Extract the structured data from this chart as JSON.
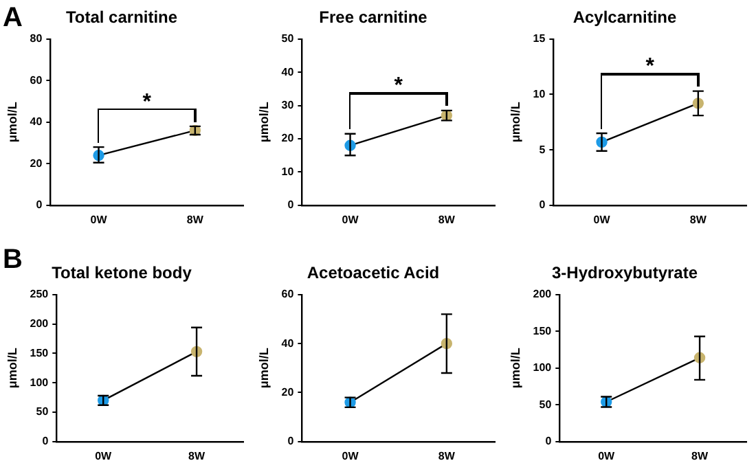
{
  "chart_data": [
    {
      "type": "line",
      "title": "Total carnitine",
      "ylabel": "μmol/L",
      "categories": [
        "0W",
        "8W"
      ],
      "series": [
        {
          "color": "#000000",
          "colors": [
            "#1e9be6",
            "#c8b46e"
          ],
          "values": [
            24,
            36
          ],
          "errors": [
            [
              20.5,
              28
            ],
            [
              34,
              38
            ]
          ]
        }
      ],
      "ylim": [
        0,
        80
      ],
      "yticks": [
        0,
        20,
        40,
        60,
        80
      ],
      "grid": false,
      "legend": false,
      "marker": "circle",
      "annotations": [
        "A",
        "*"
      ]
    },
    {
      "type": "line",
      "title": "Free carnitine",
      "ylabel": "μmol/L",
      "categories": [
        "0W",
        "8W"
      ],
      "series": [
        {
          "color": "#000000",
          "colors": [
            "#1e9be6",
            "#c8b46e"
          ],
          "values": [
            18,
            27
          ],
          "errors": [
            [
              15,
              21.5
            ],
            [
              25.5,
              28.5
            ]
          ]
        }
      ],
      "ylim": [
        0,
        50
      ],
      "yticks": [
        0,
        10,
        20,
        30,
        40,
        50
      ],
      "grid": false,
      "legend": false,
      "marker": "circle",
      "annotations": [
        "*"
      ]
    },
    {
      "type": "line",
      "title": "Acylcarnitine",
      "ylabel": "μmol/L",
      "categories": [
        "0W",
        "8W"
      ],
      "series": [
        {
          "color": "#000000",
          "colors": [
            "#1e9be6",
            "#c8b46e"
          ],
          "values": [
            5.7,
            9.2
          ],
          "errors": [
            [
              4.9,
              6.5
            ],
            [
              8.1,
              10.3
            ]
          ]
        }
      ],
      "ylim": [
        0,
        15
      ],
      "yticks": [
        0,
        5,
        10,
        15
      ],
      "grid": false,
      "legend": false,
      "marker": "circle",
      "annotations": [
        "*"
      ]
    },
    {
      "type": "line",
      "title": "Total ketone body",
      "ylabel": "μmol/L",
      "categories": [
        "0W",
        "8W"
      ],
      "series": [
        {
          "color": "#000000",
          "colors": [
            "#1e9be6",
            "#c8b46e"
          ],
          "values": [
            70,
            153
          ],
          "errors": [
            [
              62,
              78
            ],
            [
              112,
              194
            ]
          ]
        }
      ],
      "ylim": [
        0,
        250
      ],
      "yticks": [
        0,
        50,
        100,
        150,
        200,
        250
      ],
      "grid": false,
      "legend": false,
      "marker": "circle",
      "annotations": [
        "B"
      ]
    },
    {
      "type": "line",
      "title": "Acetoacetic Acid",
      "ylabel": "μmol/L",
      "categories": [
        "0W",
        "8W"
      ],
      "series": [
        {
          "color": "#000000",
          "colors": [
            "#1e9be6",
            "#c8b46e"
          ],
          "values": [
            16,
            40
          ],
          "errors": [
            [
              14,
              18
            ],
            [
              28,
              52
            ]
          ]
        }
      ],
      "ylim": [
        0,
        60
      ],
      "yticks": [
        0,
        20,
        40,
        60
      ],
      "grid": false,
      "legend": false,
      "marker": "circle"
    },
    {
      "type": "line",
      "title": "3-Hydroxybutyrate",
      "ylabel": "μmol/L",
      "categories": [
        "0W",
        "8W"
      ],
      "series": [
        {
          "color": "#000000",
          "colors": [
            "#1e9be6",
            "#c8b46e"
          ],
          "values": [
            54,
            114
          ],
          "errors": [
            [
              47,
              61
            ],
            [
              84,
              143
            ]
          ]
        }
      ],
      "ylim": [
        0,
        200
      ],
      "yticks": [
        0,
        50,
        100,
        150,
        200
      ],
      "grid": false,
      "legend": false,
      "marker": "circle"
    }
  ]
}
